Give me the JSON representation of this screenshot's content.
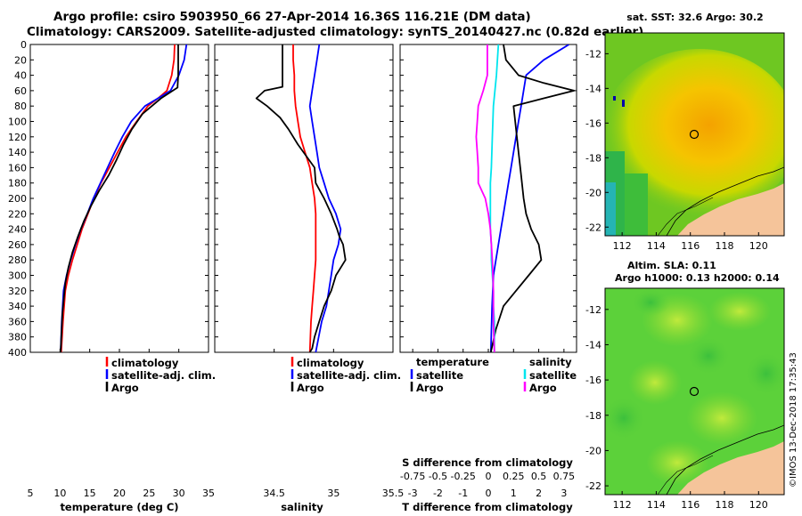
{
  "title": {
    "line1": "Argo profile: csiro 5903950_66 27-Apr-2014 16.36S 116.21E (DM data)",
    "line2": "Climatology: CARS2009. Satellite-adjusted climatology: synTS_20140427.nc (0.82d earlier)"
  },
  "credit": "©IMOS 13-Dec-2018 17:35:43",
  "colors": {
    "climatology": "#ff0000",
    "satellite": "#0000ff",
    "argo": "#000000",
    "t_satellite": "#0000ff",
    "s_satellite": "#00e5ee",
    "s_argo": "#ff00ff"
  },
  "chart_data": [
    {
      "type": "line",
      "id": "temperature",
      "xlabel": "temperature (deg C)",
      "ylabel": "depth",
      "xlim": [
        5,
        35
      ],
      "ylim": [
        400,
        0
      ],
      "xticks": [
        "5",
        "10",
        "15",
        "20",
        "25",
        "30",
        "35"
      ],
      "yticks": [
        "0",
        "20",
        "40",
        "60",
        "80",
        "100",
        "120",
        "140",
        "160",
        "180",
        "200",
        "220",
        "240",
        "260",
        "280",
        "300",
        "320",
        "340",
        "360",
        "380",
        "400"
      ],
      "legend": [
        "climatology",
        "satellite-adj. clim.",
        "Argo"
      ],
      "series": [
        {
          "name": "climatology",
          "color_key": "climatology",
          "x": [
            29.3,
            29.2,
            28.8,
            28.0,
            26.5,
            24.8,
            22.9,
            21.1,
            19.7,
            18.3,
            16.9,
            15.7,
            14.7,
            13.7,
            12.9,
            12.1,
            11.4,
            10.9,
            10.5,
            10.2
          ],
          "y": [
            0,
            20,
            40,
            60,
            70,
            80,
            100,
            120,
            140,
            160,
            180,
            200,
            220,
            240,
            260,
            280,
            300,
            320,
            360,
            400
          ]
        },
        {
          "name": "satellite-adj. clim.",
          "color_key": "satellite",
          "x": [
            31.3,
            30.9,
            30.0,
            28.6,
            26.5,
            24.3,
            22.0,
            20.5,
            19.2,
            18.0,
            16.8,
            15.6,
            14.6,
            13.5,
            12.6,
            11.8,
            11.1,
            10.6,
            10.3,
            10.1
          ],
          "y": [
            0,
            20,
            40,
            60,
            70,
            80,
            100,
            120,
            140,
            160,
            180,
            200,
            220,
            240,
            260,
            280,
            300,
            320,
            360,
            400
          ]
        },
        {
          "name": "Argo",
          "color_key": "argo",
          "x": [
            29.9,
            29.9,
            29.9,
            29.8,
            29.8,
            27.0,
            23.9,
            22.1,
            20.7,
            19.5,
            18.2,
            16.6,
            15.2,
            14.0,
            13.0,
            12.1,
            11.4,
            10.9,
            10.4,
            10.1
          ],
          "y": [
            0,
            20,
            40,
            54,
            56,
            70,
            90,
            110,
            130,
            150,
            170,
            190,
            210,
            230,
            250,
            270,
            290,
            310,
            350,
            400
          ]
        }
      ]
    },
    {
      "type": "line",
      "id": "salinity",
      "xlabel": "salinity",
      "xlim": [
        34.0,
        35.5
      ],
      "ylim": [
        400,
        0
      ],
      "xticks": [
        "34.5",
        "35",
        "35.5"
      ],
      "xtick_values": [
        34.5,
        35.0,
        35.5
      ],
      "legend": [
        "climatology",
        "satellite-adj. clim.",
        "Argo"
      ],
      "series": [
        {
          "name": "climatology",
          "color_key": "climatology",
          "x": [
            34.66,
            34.66,
            34.67,
            34.67,
            34.68,
            34.7,
            34.72,
            34.76,
            34.8,
            34.82,
            34.84,
            34.85,
            34.85,
            34.85,
            34.85,
            34.84,
            34.83,
            34.82,
            34.81,
            34.8
          ],
          "y": [
            0,
            20,
            40,
            60,
            80,
            100,
            120,
            140,
            160,
            180,
            200,
            220,
            240,
            260,
            280,
            300,
            320,
            340,
            360,
            400
          ]
        },
        {
          "name": "satellite-adj. clim.",
          "color_key": "satellite",
          "x": [
            34.88,
            34.86,
            34.84,
            34.82,
            34.8,
            34.82,
            34.84,
            34.86,
            34.88,
            34.92,
            34.96,
            35.02,
            35.06,
            35.04,
            35.0,
            34.98,
            34.96,
            34.94,
            34.9,
            34.85
          ],
          "y": [
            0,
            20,
            40,
            60,
            80,
            100,
            120,
            140,
            160,
            180,
            200,
            220,
            240,
            260,
            280,
            300,
            320,
            340,
            360,
            400
          ]
        },
        {
          "name": "Argo",
          "color_key": "argo",
          "x": [
            34.57,
            34.57,
            34.57,
            34.57,
            34.42,
            34.35,
            34.44,
            34.55,
            34.62,
            34.7,
            34.84,
            34.85,
            34.92,
            34.98,
            35.03,
            35.05,
            35.08,
            35.1,
            35.02,
            34.98,
            34.92,
            34.88,
            34.84,
            34.82,
            34.8
          ],
          "y": [
            0,
            20,
            40,
            55,
            60,
            70,
            80,
            95,
            110,
            130,
            160,
            180,
            200,
            220,
            240,
            250,
            260,
            280,
            300,
            320,
            340,
            360,
            380,
            395,
            400
          ]
        }
      ]
    },
    {
      "type": "line",
      "id": "differences",
      "xlabel": "T difference from climatology",
      "top_label": "S difference from climatology",
      "xlim": [
        -3.5,
        3.5
      ],
      "ylim": [
        400,
        0
      ],
      "xticks": [
        "-3",
        "-2",
        "-1",
        "0",
        "1",
        "2",
        "3"
      ],
      "top_xticks": [
        "-0.75",
        "-0.5",
        "-0.25",
        "0",
        "0.25",
        "0.5",
        "0.75"
      ],
      "legend_left_title": "temperature",
      "legend_right_title": "salinity",
      "legend_left": [
        "satellite",
        "Argo"
      ],
      "legend_right": [
        "satellite",
        "Argo"
      ],
      "series": [
        {
          "name": "T satellite",
          "color_key": "t_satellite",
          "axis": "T",
          "x": [
            3.2,
            2.2,
            1.5,
            1.4,
            1.3,
            1.2,
            1.1,
            1.0,
            0.9,
            0.8,
            0.7,
            0.6,
            0.5,
            0.4,
            0.3,
            0.2,
            0.15,
            0.1
          ],
          "y": [
            0,
            20,
            40,
            60,
            80,
            100,
            120,
            140,
            160,
            180,
            200,
            220,
            240,
            260,
            280,
            300,
            340,
            400
          ]
        },
        {
          "name": "T Argo",
          "color_key": "argo",
          "axis": "T",
          "x": [
            0.6,
            0.7,
            1.2,
            2.2,
            3.4,
            2.2,
            1.0,
            1.1,
            1.2,
            1.3,
            1.4,
            1.5,
            1.7,
            2.0,
            2.1,
            1.6,
            1.1,
            0.6,
            0.3,
            0.1
          ],
          "y": [
            0,
            20,
            40,
            50,
            60,
            70,
            80,
            110,
            140,
            170,
            200,
            220,
            240,
            260,
            280,
            300,
            320,
            340,
            370,
            400
          ]
        },
        {
          "name": "S satellite",
          "color_key": "s_satellite",
          "axis": "S",
          "x": [
            0.1,
            0.08,
            0.05,
            0.04,
            0.03,
            0.02,
            0.02,
            0.02,
            0.03,
            0.03,
            0.04,
            0.05,
            0.05,
            0.06,
            0.06
          ],
          "y": [
            0,
            40,
            80,
            120,
            160,
            180,
            200,
            240,
            260,
            280,
            300,
            320,
            340,
            360,
            400
          ]
        },
        {
          "name": "S Argo",
          "color_key": "s_argo",
          "axis": "S",
          "x": [
            -0.01,
            -0.01,
            -0.05,
            -0.1,
            -0.11,
            -0.12,
            -0.11,
            -0.1,
            -0.1,
            -0.03,
            0.0,
            0.02,
            0.04,
            0.05,
            0.05,
            0.06
          ],
          "y": [
            0,
            40,
            60,
            80,
            100,
            120,
            140,
            160,
            180,
            200,
            220,
            240,
            280,
            320,
            360,
            400
          ]
        }
      ]
    },
    {
      "type": "heatmap",
      "id": "sst_map",
      "title": "sat. SST: 32.6 Argo: 30.2",
      "xlim": [
        111,
        121.5
      ],
      "ylim": [
        -22.5,
        -10.8
      ],
      "xticks": [
        "112",
        "114",
        "116",
        "118",
        "120"
      ],
      "yticks": [
        "-12",
        "-14",
        "-16",
        "-18",
        "-20",
        "-22"
      ],
      "marker": {
        "lon": 116.21,
        "lat": -16.36
      }
    },
    {
      "type": "heatmap",
      "id": "sla_map",
      "title_line1": "Altim. SLA: 0.11",
      "title_line2": "Argo h1000: 0.13 h2000: 0.14",
      "xlim": [
        111,
        121.5
      ],
      "ylim": [
        -22.5,
        -10.8
      ],
      "xticks": [
        "112",
        "114",
        "116",
        "118",
        "120"
      ],
      "yticks": [
        "-12",
        "-14",
        "-16",
        "-18",
        "-20",
        "-22"
      ],
      "marker": {
        "lon": 116.21,
        "lat": -16.36
      }
    }
  ]
}
